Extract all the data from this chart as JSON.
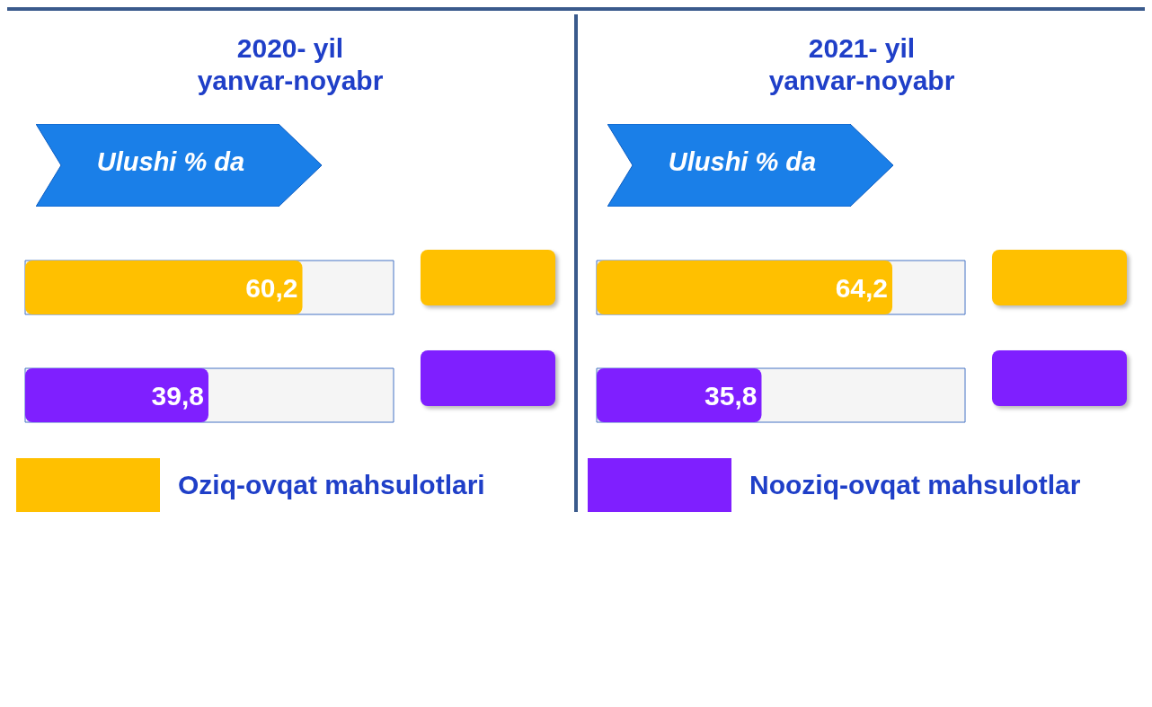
{
  "chart_data": [
    {
      "type": "bar",
      "orientation": "horizontal",
      "stacked": true,
      "title": "2020- yil\nyanvar-noyabr",
      "subtitle": "Ulushi % da",
      "categories": [
        null,
        null
      ],
      "tick_labels": false,
      "legend": "bottom",
      "grid": false,
      "series": [
        {
          "name": "Oziq-ovqat mahsulotlari",
          "color": "#ffc000",
          "values": [
            60.2,
            null
          ],
          "value_labels": [
            "60,2",
            null
          ]
        },
        {
          "color": "#7f1fff",
          "values": [
            null,
            39.8
          ],
          "value_labels": [
            null,
            "39,8"
          ]
        }
      ]
    },
    {
      "type": "bar",
      "orientation": "horizontal",
      "stacked": true,
      "title": "2021- yil\nyanvar-noyabr",
      "subtitle": "Ulushi % da",
      "categories": [
        null,
        null
      ],
      "tick_labels": false,
      "legend": "bottom",
      "grid": false,
      "series": [
        {
          "color": "#ffc000",
          "values": [
            64.2,
            null
          ],
          "value_labels": [
            "64,2",
            null
          ]
        },
        {
          "name": "Nooziq-ovqat mahsulotlar",
          "color": "#7f1fff",
          "values": [
            null,
            35.8
          ],
          "value_labels": [
            null,
            "35,8"
          ]
        }
      ]
    }
  ]
}
